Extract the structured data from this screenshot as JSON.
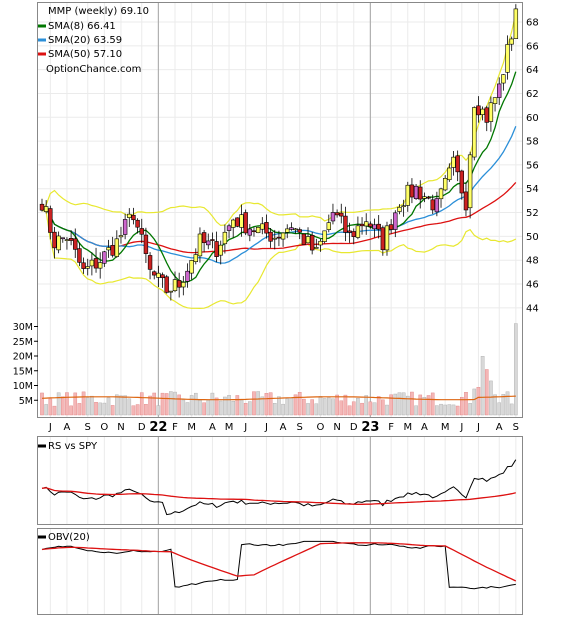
{
  "chart_data": [
    {
      "type": "candlestick",
      "title": "MMP (weekly) 69.10",
      "legend": [
        {
          "label": "SMA(8) 66.41",
          "color": "#007700"
        },
        {
          "label": "SMA(20) 63.59",
          "color": "#2b8fd8"
        },
        {
          "label": "SMA(50) 57.10",
          "color": "#dd1111"
        }
      ],
      "watermark": "OptionChance.com",
      "ylim": [
        43.2,
        70.2
      ],
      "y_ticks": [
        44,
        46,
        48,
        50,
        52,
        54,
        56,
        58,
        60,
        62,
        64,
        66,
        68
      ],
      "volume_ticks": [
        {
          "label": "5M",
          "value": 5
        },
        {
          "label": "10M",
          "value": 10
        },
        {
          "label": "15M",
          "value": 15
        },
        {
          "label": "20M",
          "value": 20
        },
        {
          "label": "25M",
          "value": 25
        },
        {
          "label": "30M",
          "value": 30
        }
      ],
      "x_labels": [
        "J",
        "A",
        "S",
        "O",
        "N",
        "D",
        "22",
        "F",
        "M",
        "A",
        "M",
        "J",
        "J",
        "A",
        "S",
        "O",
        "N",
        "D",
        "23",
        "F",
        "M",
        "A",
        "M",
        "J",
        "J",
        "A",
        "S"
      ],
      "x_year_labels": [
        "22",
        "23"
      ],
      "price_closes_start": 49.0,
      "price_closes_end": 69.1,
      "colors": {
        "up": "#ffff66",
        "down": "#cc2222",
        "up_alt": "#cc66cc",
        "volume_up": "#d8d8d8",
        "volume_down": "#f4b6b6"
      }
    },
    {
      "type": "line",
      "title": "RS vs SPY",
      "series": [
        {
          "name": "RS vs SPY",
          "color": "#000000"
        },
        {
          "color": "#dd1111"
        }
      ]
    },
    {
      "type": "line",
      "title": "OBV(20)",
      "series": [
        {
          "name": "OBV(20)",
          "color": "#000000"
        },
        {
          "color": "#dd1111"
        }
      ]
    }
  ]
}
